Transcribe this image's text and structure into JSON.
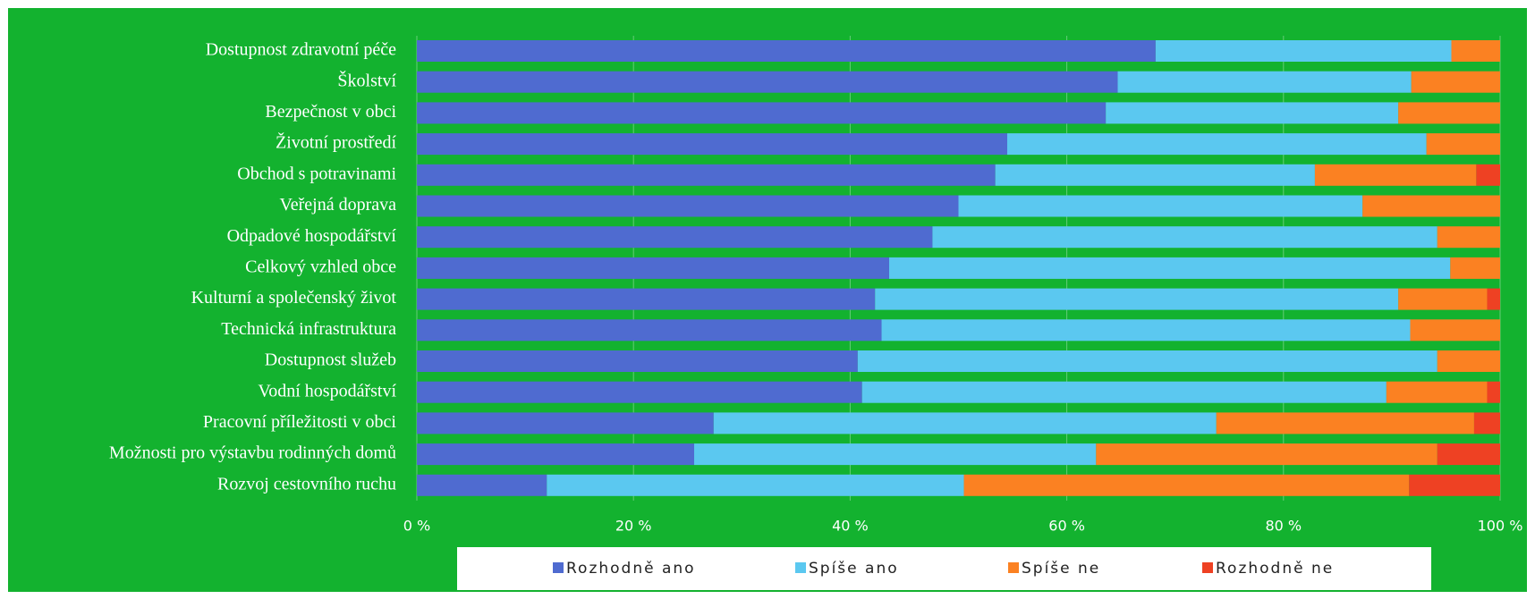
{
  "chart_data": {
    "type": "stacked_bar_horizontal",
    "categories": [
      "Dostupnost zdravotní péče",
      "Školství",
      "Bezpečnost v obci",
      "Životní prostředí",
      "Obchod s potravinami",
      "Veřejná doprava",
      "Odpadové hospodářství",
      "Celkový vzhled obce",
      "Kulturní a společenský život",
      "Technická infrastruktura",
      "Dostupnost služeb",
      "Vodní hospodářství",
      "Pracovní příležitosti v obci",
      "Možnosti pro výstavbu rodinných domů",
      "Rozvoj cestovního ruchu"
    ],
    "series": [
      {
        "name": "Rozhodně ano",
        "color": "#4f6bd0",
        "values": [
          68.2,
          64.7,
          63.6,
          54.5,
          53.4,
          50.0,
          47.6,
          43.6,
          42.3,
          42.9,
          40.7,
          41.1,
          27.4,
          25.6,
          12.0
        ]
      },
      {
        "name": "Spíše ano",
        "color": "#5bc8f0",
        "values": [
          27.3,
          27.1,
          27.0,
          38.7,
          29.5,
          37.3,
          46.6,
          51.8,
          48.3,
          48.8,
          53.5,
          48.4,
          46.4,
          37.1,
          38.5
        ]
      },
      {
        "name": "Spíše ne",
        "color": "#fb8122",
        "values": [
          4.5,
          8.2,
          9.4,
          6.8,
          14.9,
          12.7,
          5.8,
          4.6,
          8.2,
          8.3,
          5.8,
          9.3,
          23.8,
          31.5,
          41.1
        ]
      },
      {
        "name": "Rozhodně ne",
        "color": "#ee4123",
        "values": [
          0,
          0,
          0,
          0,
          2.2,
          0,
          0,
          0,
          1.2,
          0,
          0,
          1.2,
          2.4,
          5.8,
          8.4
        ]
      }
    ],
    "xlim": [
      0,
      100
    ],
    "xticks": [
      {
        "value": 0,
        "label": "0 %"
      },
      {
        "value": 20,
        "label": "20 %"
      },
      {
        "value": 40,
        "label": "40 %"
      },
      {
        "value": 60,
        "label": "60 %"
      },
      {
        "value": 80,
        "label": "80 %"
      },
      {
        "value": 100,
        "label": "100 %"
      }
    ],
    "grid": true,
    "legend": "bottom"
  }
}
